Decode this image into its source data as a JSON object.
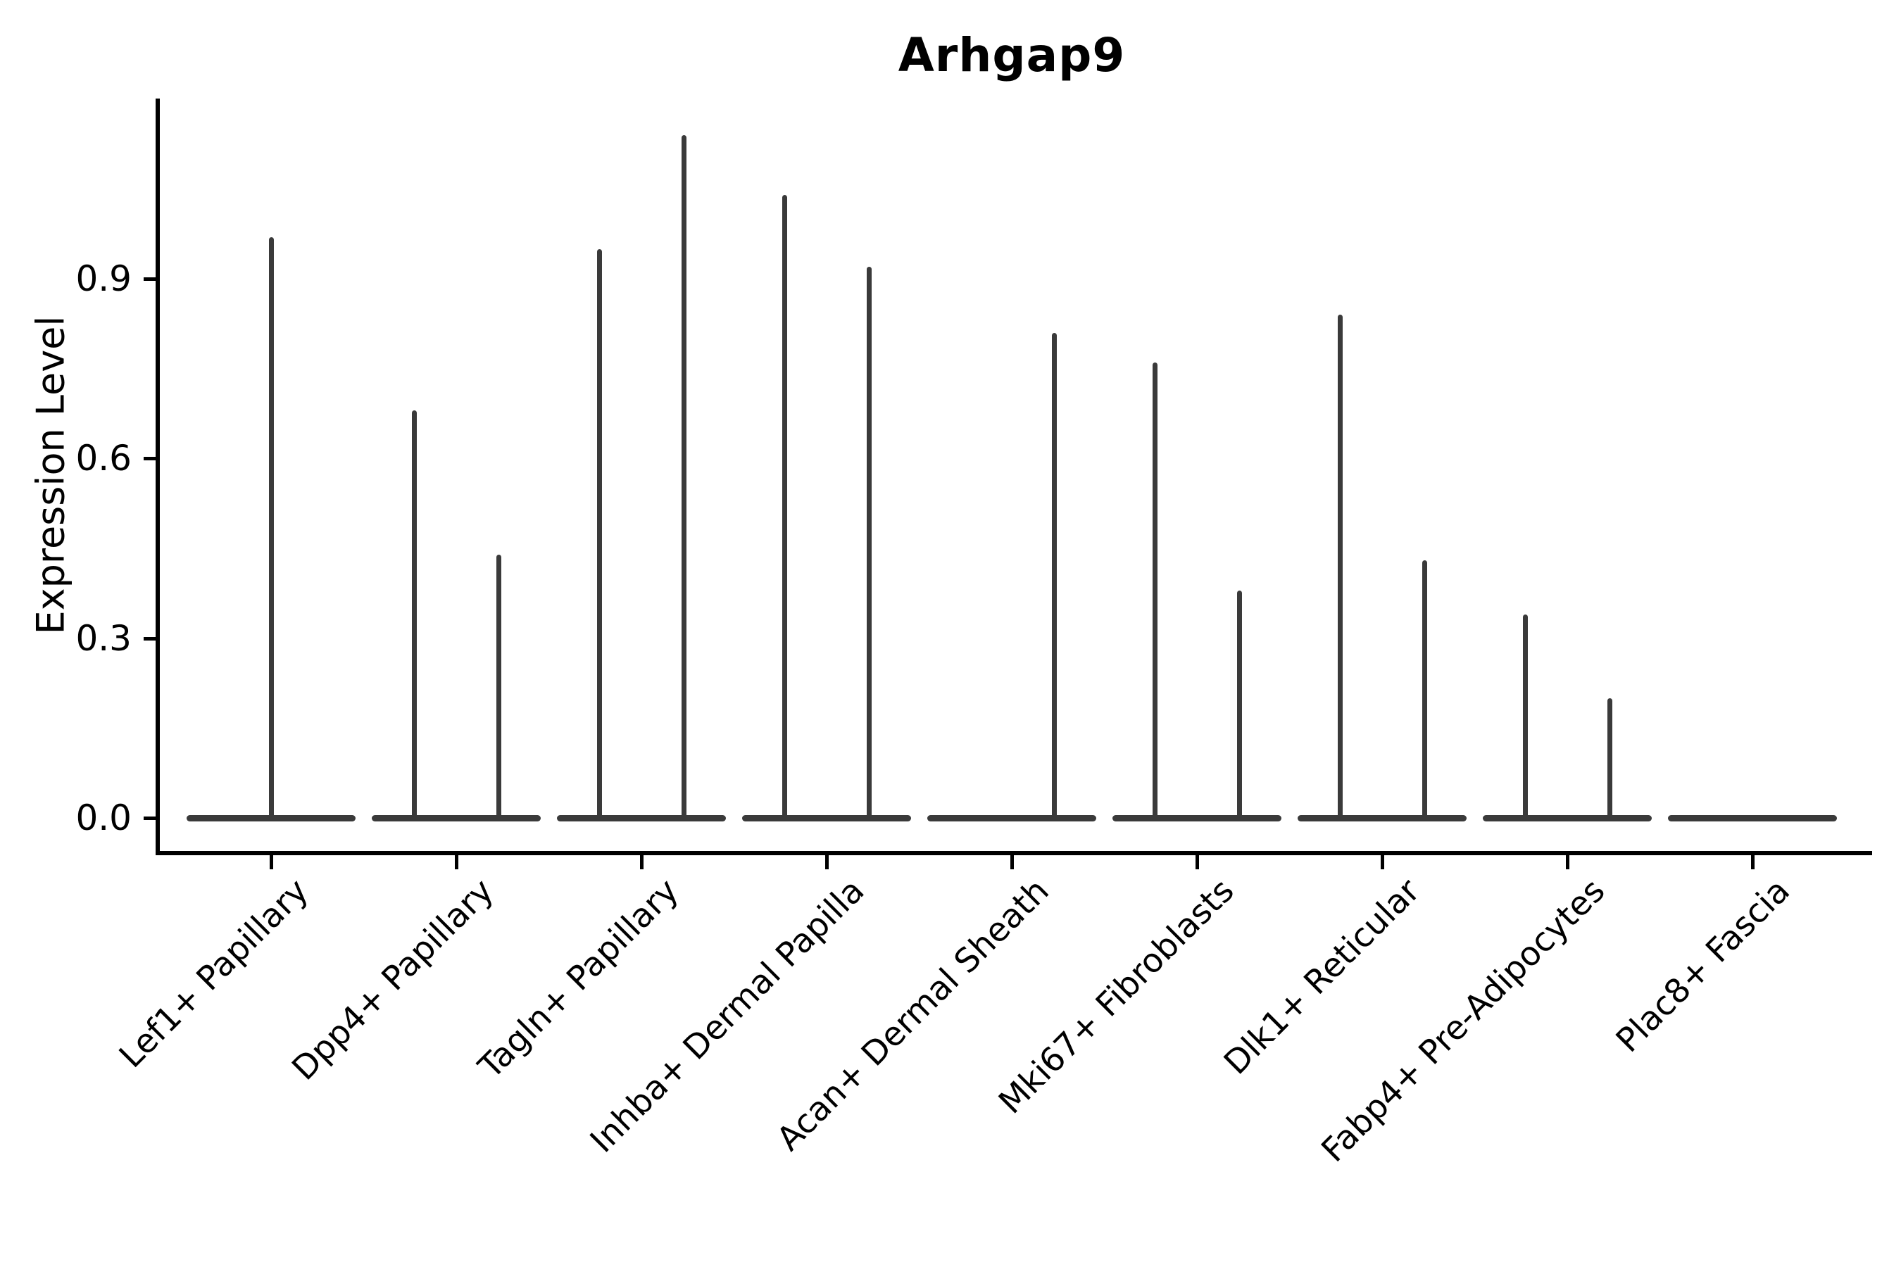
{
  "chart_data": {
    "type": "violin",
    "title": "Arhgap9",
    "ylabel": "Expression Level",
    "xlabel": "",
    "ylim": [
      0.0,
      1.2
    ],
    "yticks": [
      0.0,
      0.3,
      0.6,
      0.9
    ],
    "ytick_labels": [
      "0.0",
      "0.3",
      "0.6",
      "0.9"
    ],
    "grid": false,
    "legend": "none",
    "violin_color": "#3a3a3a",
    "axis_color": "#000000",
    "categories": [
      "Lef1+ Papillary",
      "Dpp4+ Papillary",
      "Tagln+ Papillary",
      "Inhba+ Dermal Papilla",
      "Acan+ Dermal Sheath",
      "Mki67+ Fibroblasts",
      "Dlk1+ Reticular",
      "Fabp4+ Pre-Adipocytes",
      "Plac8+ Fascia"
    ],
    "violins": [
      {
        "category": "Lef1+ Papillary",
        "base_at_zero": true,
        "spikes": [
          {
            "offset": 0,
            "max": 0.97
          }
        ]
      },
      {
        "category": "Dpp4+ Papillary",
        "base_at_zero": true,
        "spikes": [
          {
            "offset": -1,
            "max": 0.68
          },
          {
            "offset": 1,
            "max": 0.44
          }
        ]
      },
      {
        "category": "Tagln+ Papillary",
        "base_at_zero": true,
        "spikes": [
          {
            "offset": -1,
            "max": 0.95
          },
          {
            "offset": 1,
            "max": 1.14
          }
        ]
      },
      {
        "category": "Inhba+ Dermal Papilla",
        "base_at_zero": true,
        "spikes": [
          {
            "offset": -1,
            "max": 1.04
          },
          {
            "offset": 1,
            "max": 0.92
          }
        ]
      },
      {
        "category": "Acan+ Dermal Sheath",
        "base_at_zero": true,
        "spikes": [
          {
            "offset": 1,
            "max": 0.81
          }
        ]
      },
      {
        "category": "Mki67+ Fibroblasts",
        "base_at_zero": true,
        "spikes": [
          {
            "offset": -1,
            "max": 0.76
          },
          {
            "offset": 1,
            "max": 0.38
          }
        ]
      },
      {
        "category": "Dlk1+ Reticular",
        "base_at_zero": true,
        "spikes": [
          {
            "offset": -1,
            "max": 0.84
          },
          {
            "offset": 1,
            "max": 0.43
          }
        ]
      },
      {
        "category": "Fabp4+ Pre-Adipocytes",
        "base_at_zero": true,
        "spikes": [
          {
            "offset": -1,
            "max": 0.34
          },
          {
            "offset": 1,
            "max": 0.2
          }
        ]
      },
      {
        "category": "Plac8+ Fascia",
        "base_at_zero": true,
        "spikes": []
      }
    ]
  }
}
